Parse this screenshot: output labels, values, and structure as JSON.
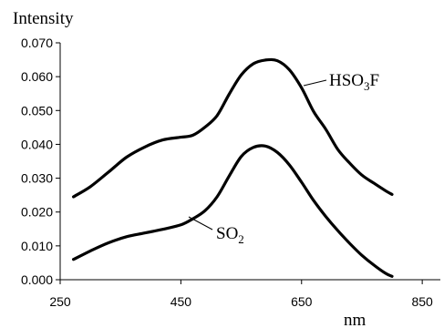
{
  "chart_data": {
    "type": "line",
    "ylabel": "Intensity",
    "xlabel": "nm",
    "xlim": [
      250,
      880
    ],
    "ylim": [
      0,
      0.07
    ],
    "x_ticks": [
      250,
      450,
      650,
      850
    ],
    "x_tick_labels": [
      "250",
      "450",
      "650",
      "850"
    ],
    "y_ticks": [
      0,
      0.01,
      0.02,
      0.03,
      0.04,
      0.05,
      0.06,
      0.07
    ],
    "y_tick_labels": [
      "0.000",
      "0.010",
      "0.020",
      "0.030",
      "0.040",
      "0.050",
      "0.060",
      "0.070"
    ],
    "grid": false,
    "legend": "none",
    "series": [
      {
        "name": "HSO3F",
        "label_main": "HSO",
        "label_sub": "3",
        "label_tail": "F",
        "x": [
          272,
          300,
          330,
          360,
          390,
          420,
          450,
          470,
          490,
          510,
          530,
          550,
          570,
          590,
          610,
          630,
          650,
          670,
          690,
          710,
          730,
          750,
          770,
          790,
          800
        ],
        "y": [
          0.0245,
          0.0275,
          0.0318,
          0.0362,
          0.0392,
          0.0413,
          0.0421,
          0.0427,
          0.0451,
          0.0485,
          0.0548,
          0.0605,
          0.0638,
          0.0649,
          0.0647,
          0.062,
          0.0567,
          0.0497,
          0.0445,
          0.0385,
          0.0344,
          0.0309,
          0.0285,
          0.0262,
          0.0252
        ]
      },
      {
        "name": "SO2",
        "label_main": "SO",
        "label_sub": "2",
        "label_tail": "",
        "x": [
          272,
          300,
          330,
          360,
          390,
          420,
          450,
          470,
          490,
          510,
          530,
          550,
          570,
          590,
          610,
          630,
          650,
          670,
          690,
          710,
          730,
          750,
          770,
          790,
          800
        ],
        "y": [
          0.006,
          0.0085,
          0.0109,
          0.0127,
          0.0138,
          0.0149,
          0.0162,
          0.018,
          0.0204,
          0.0245,
          0.0306,
          0.0364,
          0.0391,
          0.0395,
          0.0376,
          0.0339,
          0.0288,
          0.0234,
          0.0187,
          0.0145,
          0.0107,
          0.0072,
          0.0043,
          0.0018,
          0.001
        ]
      }
    ]
  }
}
